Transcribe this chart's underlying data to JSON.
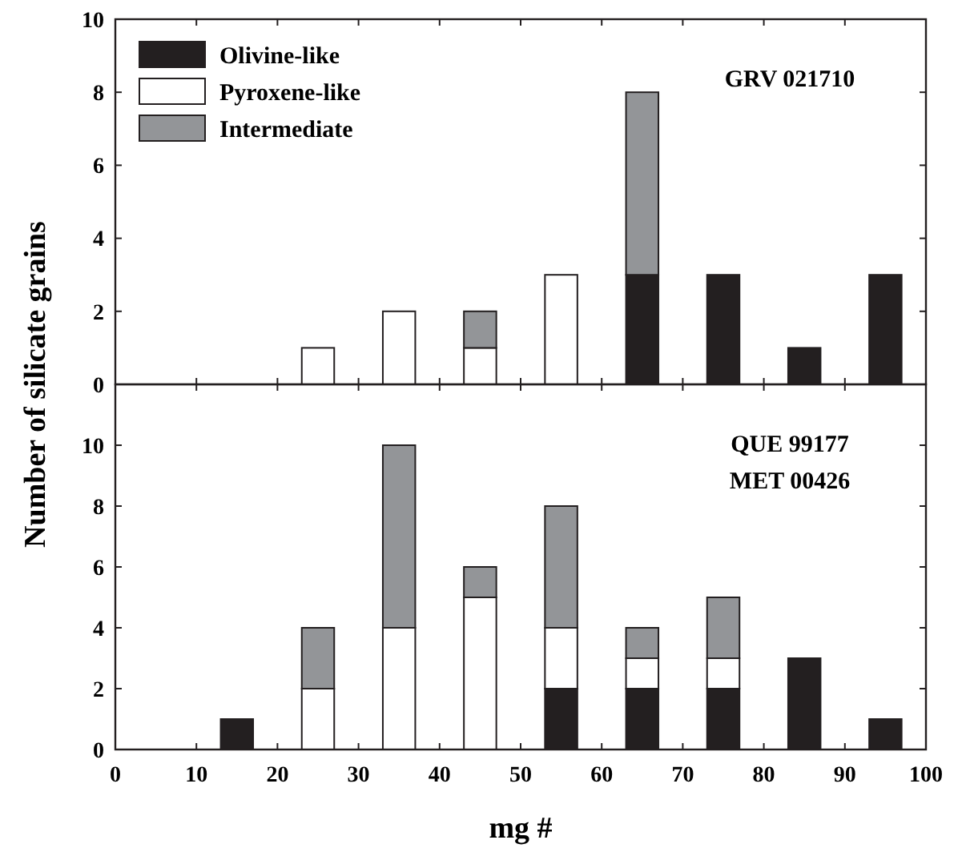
{
  "chart_data": [
    {
      "type": "bar",
      "stacked": true,
      "ylabel": "Number of silicate grains",
      "x": [
        15,
        25,
        35,
        45,
        55,
        65,
        75,
        85,
        95
      ],
      "xlim": [
        0,
        100
      ],
      "xticks": [
        0,
        10,
        20,
        30,
        40,
        50,
        60,
        70,
        80,
        90,
        100
      ],
      "ylim": [
        0,
        10
      ],
      "yticks": [
        0,
        2,
        4,
        6,
        8,
        10
      ],
      "tick_labels": "y",
      "legend": "top left",
      "annotations": [
        "GRV 021710"
      ],
      "series": [
        {
          "name": "Olivine-like",
          "color": "#231f20",
          "values": [
            0,
            0,
            0,
            0,
            0,
            3,
            3,
            1,
            3
          ]
        },
        {
          "name": "Pyroxene-like",
          "color": "#ffffff",
          "values": [
            0,
            1,
            2,
            1,
            3,
            0,
            0,
            0,
            0
          ]
        },
        {
          "name": "Intermediate",
          "color": "#939598",
          "values": [
            0,
            0,
            0,
            1,
            0,
            5,
            0,
            0,
            0
          ]
        }
      ]
    },
    {
      "type": "bar",
      "stacked": true,
      "xlabel": "mg #",
      "x": [
        15,
        25,
        35,
        45,
        55,
        65,
        75,
        85,
        95
      ],
      "xlim": [
        0,
        100
      ],
      "xticks": [
        0,
        10,
        20,
        30,
        40,
        50,
        60,
        70,
        80,
        90,
        100
      ],
      "ylim": [
        0,
        12
      ],
      "yticks": [
        0,
        2,
        4,
        6,
        8,
        10
      ],
      "annotations": [
        "QUE 99177",
        "MET 00426"
      ],
      "series": [
        {
          "color": "#231f20",
          "values": [
            1,
            0,
            0,
            0,
            2,
            2,
            2,
            3,
            1
          ]
        },
        {
          "color": "#ffffff",
          "values": [
            0,
            2,
            4,
            5,
            2,
            1,
            1,
            0,
            0
          ]
        },
        {
          "color": "#939598",
          "values": [
            0,
            2,
            6,
            1,
            4,
            1,
            2,
            0,
            0
          ]
        }
      ]
    }
  ]
}
